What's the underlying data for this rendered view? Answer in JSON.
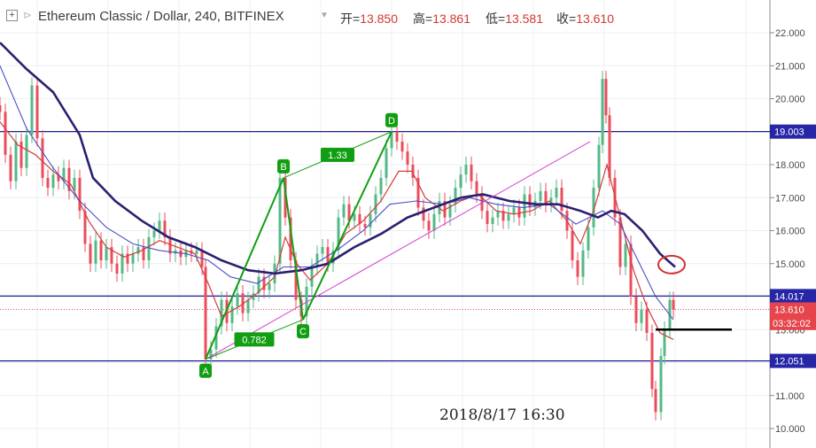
{
  "header": {
    "symbol": "Ethereum Classic / Dollar, 240, BITFINEX",
    "open_label": "开=",
    "open": "13.850",
    "high_label": "高=",
    "high": "13.861",
    "low_label": "低=",
    "low": "13.581",
    "close_label": "收=",
    "close": "13.610",
    "up_color": "#d2372f",
    "expand_icon": "plus-square-icon",
    "collapse_icon": "collapse-arrow-icon",
    "dropdown_icon": "chevron-down-icon"
  },
  "chart_data": {
    "type": "candlestick",
    "symbol": "ETC/USD",
    "timeframe": "240",
    "exchange": "BITFINEX",
    "ylim": [
      9.8,
      22.4
    ],
    "yticks": [
      "22.000",
      "21.000",
      "20.000",
      "19.000",
      "18.000",
      "17.000",
      "16.000",
      "15.000",
      "14.000",
      "13.000",
      "12.000",
      "11.000",
      "10.000"
    ],
    "price_labels": [
      {
        "value": 19.003,
        "text": "19.003",
        "color": "#2626a6"
      },
      {
        "value": 14.017,
        "text": "14.017",
        "color": "#2626a6"
      },
      {
        "value": 13.61,
        "text": "13.610",
        "color": "#e5454b"
      },
      {
        "value": 12.051,
        "text": "12.051",
        "color": "#2626a6"
      }
    ],
    "countdown": {
      "value": 13.2,
      "text": "03:32:02",
      "color": "#e5454b"
    },
    "hlines": [
      {
        "value": 19.003,
        "color": "#1c1c96"
      },
      {
        "value": 14.017,
        "color": "#1c1c96"
      },
      {
        "value": 12.051,
        "color": "#1c1c96"
      }
    ],
    "current_price_line": {
      "value": 13.61,
      "color": "#e05050"
    },
    "support_segment": {
      "value": 13.0,
      "x_start": 740,
      "x_end": 826
    },
    "series_close": [
      [
        0,
        19.6
      ],
      [
        6,
        18.3
      ],
      [
        12,
        17.5
      ],
      [
        18,
        18.7
      ],
      [
        24,
        17.9
      ],
      [
        30,
        18.9
      ],
      [
        36,
        20.4
      ],
      [
        42,
        18.8
      ],
      [
        48,
        17.6
      ],
      [
        54,
        17.3
      ],
      [
        60,
        17.7
      ],
      [
        66,
        17.5
      ],
      [
        72,
        17.9
      ],
      [
        78,
        17.2
      ],
      [
        84,
        17.6
      ],
      [
        90,
        16.6
      ],
      [
        96,
        15.6
      ],
      [
        102,
        15.0
      ],
      [
        108,
        15.7
      ],
      [
        114,
        15.1
      ],
      [
        120,
        15.5
      ],
      [
        126,
        15.0
      ],
      [
        132,
        14.7
      ],
      [
        138,
        15.3
      ],
      [
        144,
        15.0
      ],
      [
        150,
        15.3
      ],
      [
        156,
        15.5
      ],
      [
        162,
        15.1
      ],
      [
        168,
        15.8
      ],
      [
        174,
        16.0
      ],
      [
        180,
        16.3
      ],
      [
        186,
        15.8
      ],
      [
        192,
        15.3
      ],
      [
        198,
        15.4
      ],
      [
        204,
        15.2
      ],
      [
        210,
        15.4
      ],
      [
        216,
        15.3
      ],
      [
        222,
        15.4
      ],
      [
        228,
        14.9
      ],
      [
        232,
        12.1
      ],
      [
        238,
        12.4
      ],
      [
        244,
        13.1
      ],
      [
        250,
        13.9
      ],
      [
        256,
        13.2
      ],
      [
        262,
        13.7
      ],
      [
        268,
        14.1
      ],
      [
        274,
        13.5
      ],
      [
        280,
        13.9
      ],
      [
        286,
        14.1
      ],
      [
        292,
        14.6
      ],
      [
        298,
        14.2
      ],
      [
        304,
        14.4
      ],
      [
        310,
        15.0
      ],
      [
        316,
        17.6
      ],
      [
        322,
        16.4
      ],
      [
        328,
        15.1
      ],
      [
        334,
        13.9
      ],
      [
        340,
        13.4
      ],
      [
        346,
        14.3
      ],
      [
        352,
        14.9
      ],
      [
        358,
        15.3
      ],
      [
        364,
        15.5
      ],
      [
        370,
        15.0
      ],
      [
        376,
        15.4
      ],
      [
        382,
        16.4
      ],
      [
        388,
        16.8
      ],
      [
        394,
        16.3
      ],
      [
        400,
        16.5
      ],
      [
        406,
        16.2
      ],
      [
        412,
        16.1
      ],
      [
        418,
        16.5
      ],
      [
        424,
        17.1
      ],
      [
        430,
        17.6
      ],
      [
        436,
        18.5
      ],
      [
        442,
        19.0
      ],
      [
        448,
        18.7
      ],
      [
        454,
        18.4
      ],
      [
        460,
        18.0
      ],
      [
        466,
        17.6
      ],
      [
        472,
        16.7
      ],
      [
        478,
        16.3
      ],
      [
        484,
        16.0
      ],
      [
        490,
        16.5
      ],
      [
        496,
        16.9
      ],
      [
        502,
        16.4
      ],
      [
        508,
        16.8
      ],
      [
        514,
        17.3
      ],
      [
        520,
        17.7
      ],
      [
        526,
        18.0
      ],
      [
        532,
        17.5
      ],
      [
        538,
        17.1
      ],
      [
        544,
        16.6
      ],
      [
        550,
        16.2
      ],
      [
        556,
        16.4
      ],
      [
        562,
        16.6
      ],
      [
        568,
        16.3
      ],
      [
        574,
        16.5
      ],
      [
        580,
        16.7
      ],
      [
        586,
        16.4
      ],
      [
        592,
        17.1
      ],
      [
        598,
        16.7
      ],
      [
        604,
        16.9
      ],
      [
        610,
        17.2
      ],
      [
        616,
        16.8
      ],
      [
        622,
        17.0
      ],
      [
        628,
        17.3
      ],
      [
        634,
        16.6
      ],
      [
        640,
        16.0
      ],
      [
        646,
        15.1
      ],
      [
        652,
        14.6
      ],
      [
        658,
        15.4
      ],
      [
        664,
        16.1
      ],
      [
        670,
        17.3
      ],
      [
        676,
        18.6
      ],
      [
        680,
        20.6
      ],
      [
        684,
        19.5
      ],
      [
        688,
        17.6
      ],
      [
        694,
        16.4
      ],
      [
        700,
        14.9
      ],
      [
        706,
        15.6
      ],
      [
        712,
        14.0
      ],
      [
        718,
        13.2
      ],
      [
        724,
        13.6
      ],
      [
        730,
        12.9
      ],
      [
        736,
        11.2
      ],
      [
        740,
        10.5
      ],
      [
        746,
        12.2
      ],
      [
        750,
        13.0
      ],
      [
        756,
        13.9
      ],
      [
        760,
        13.6
      ]
    ],
    "ma_fast": [
      [
        0,
        19.3
      ],
      [
        20,
        18.6
      ],
      [
        40,
        18.3
      ],
      [
        60,
        17.8
      ],
      [
        80,
        17.4
      ],
      [
        100,
        16.3
      ],
      [
        120,
        15.5
      ],
      [
        140,
        15.2
      ],
      [
        160,
        15.4
      ],
      [
        180,
        15.7
      ],
      [
        200,
        15.5
      ],
      [
        220,
        15.3
      ],
      [
        235,
        14.4
      ],
      [
        250,
        13.4
      ],
      [
        270,
        13.7
      ],
      [
        290,
        14.1
      ],
      [
        310,
        14.6
      ],
      [
        322,
        15.8
      ],
      [
        335,
        15.0
      ],
      [
        350,
        14.5
      ],
      [
        370,
        15.0
      ],
      [
        390,
        15.9
      ],
      [
        410,
        16.3
      ],
      [
        430,
        16.9
      ],
      [
        450,
        17.8
      ],
      [
        465,
        17.8
      ],
      [
        480,
        17.0
      ],
      [
        500,
        16.6
      ],
      [
        520,
        16.9
      ],
      [
        540,
        17.1
      ],
      [
        560,
        16.6
      ],
      [
        580,
        16.5
      ],
      [
        600,
        16.6
      ],
      [
        620,
        16.9
      ],
      [
        640,
        16.3
      ],
      [
        655,
        15.6
      ],
      [
        670,
        16.6
      ],
      [
        685,
        18.0
      ],
      [
        700,
        16.4
      ],
      [
        715,
        14.8
      ],
      [
        730,
        13.7
      ],
      [
        745,
        12.9
      ],
      [
        760,
        12.7
      ]
    ],
    "ma_mid": [
      [
        0,
        21.0
      ],
      [
        30,
        19.1
      ],
      [
        60,
        17.9
      ],
      [
        90,
        16.9
      ],
      [
        120,
        16.1
      ],
      [
        150,
        15.6
      ],
      [
        180,
        15.4
      ],
      [
        210,
        15.3
      ],
      [
        235,
        15.1
      ],
      [
        260,
        14.6
      ],
      [
        290,
        14.4
      ],
      [
        320,
        14.9
      ],
      [
        350,
        14.9
      ],
      [
        380,
        15.4
      ],
      [
        410,
        16.0
      ],
      [
        440,
        16.8
      ],
      [
        470,
        16.9
      ],
      [
        500,
        16.8
      ],
      [
        530,
        17.0
      ],
      [
        560,
        16.8
      ],
      [
        590,
        16.7
      ],
      [
        620,
        16.8
      ],
      [
        650,
        16.2
      ],
      [
        680,
        16.6
      ],
      [
        700,
        16.2
      ],
      [
        720,
        15.1
      ],
      [
        740,
        14.0
      ],
      [
        760,
        13.3
      ]
    ],
    "ma_slow": [
      [
        0,
        21.7
      ],
      [
        30,
        20.9
      ],
      [
        60,
        20.2
      ],
      [
        90,
        18.9
      ],
      [
        105,
        17.6
      ],
      [
        130,
        16.9
      ],
      [
        160,
        16.3
      ],
      [
        190,
        15.8
      ],
      [
        220,
        15.5
      ],
      [
        250,
        15.1
      ],
      [
        280,
        14.8
      ],
      [
        310,
        14.7
      ],
      [
        340,
        14.8
      ],
      [
        370,
        15.0
      ],
      [
        400,
        15.5
      ],
      [
        430,
        15.9
      ],
      [
        460,
        16.4
      ],
      [
        490,
        16.7
      ],
      [
        520,
        17.0
      ],
      [
        545,
        17.1
      ],
      [
        575,
        16.9
      ],
      [
        605,
        16.8
      ],
      [
        630,
        16.8
      ],
      [
        655,
        16.6
      ],
      [
        675,
        16.4
      ],
      [
        690,
        16.6
      ],
      [
        705,
        16.5
      ],
      [
        725,
        16.0
      ],
      [
        745,
        15.3
      ],
      [
        762,
        14.9
      ]
    ],
    "trendline": {
      "from": [
        232,
        12.1
      ],
      "to": [
        666,
        18.7
      ],
      "color": "#d43fd0"
    },
    "harmonic": {
      "points": [
        {
          "label": "A",
          "x": 232,
          "value": 12.1
        },
        {
          "label": "B",
          "x": 320,
          "value": 17.6
        },
        {
          "label": "C",
          "x": 342,
          "value": 13.3
        },
        {
          "label": "D",
          "x": 442,
          "value": 19.0
        }
      ],
      "ratios": [
        {
          "text": "1.33",
          "between": "B-D"
        },
        {
          "text": "0.782",
          "between": "A-C"
        }
      ],
      "color": "#129e12"
    },
    "ellipse_marker": {
      "x": 758,
      "value": 14.97,
      "color": "#d43030"
    },
    "annotation": {
      "text": "2018/8/17  16:30"
    }
  }
}
